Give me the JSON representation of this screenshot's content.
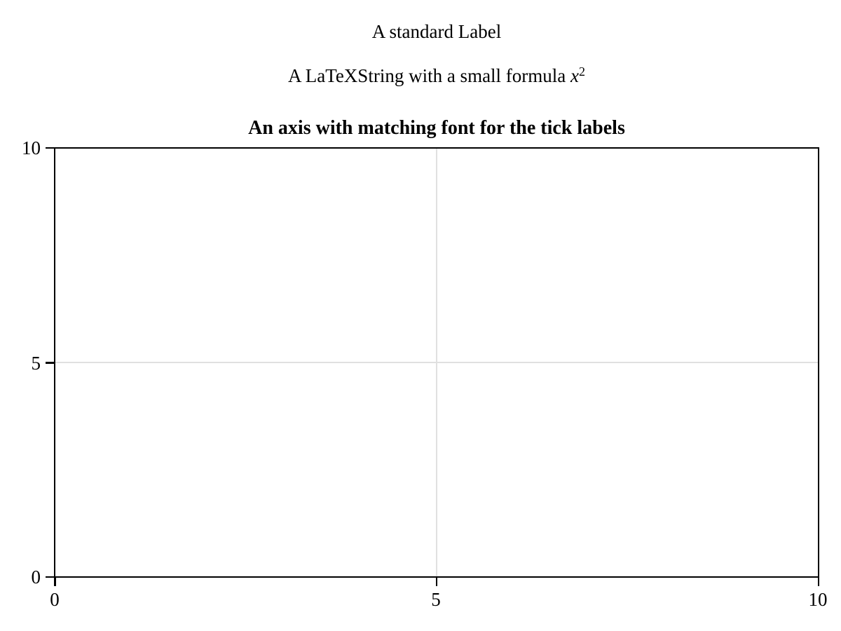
{
  "figure": {
    "background_color": "#ffffff",
    "text_color": "#000000",
    "labels": {
      "standard": "A standard Label",
      "latex_prefix": "A LaTeXString with a small formula ",
      "latex_var": "x",
      "latex_sup": "2"
    },
    "axis": {
      "title": "An axis with matching font for the tick labels",
      "spine_color": "#000000",
      "grid_color": "#e0e0e0",
      "xticklabels": [
        "0",
        "5",
        "10"
      ],
      "yticklabels": [
        "0",
        "5",
        "10"
      ]
    }
  },
  "chart_data": {
    "type": "line",
    "title": "An axis with matching font for the tick labels",
    "xlabel": "",
    "ylabel": "",
    "xlim": [
      0,
      10
    ],
    "ylim": [
      0,
      10
    ],
    "xticks": [
      0,
      5,
      10
    ],
    "yticks": [
      0,
      5,
      10
    ],
    "grid": true,
    "legend": false,
    "series": [],
    "notes": "Empty axis with no plotted data; gridlines at x=5 and y=5; box-style spines with outward ticks. Two text labels above the axis title."
  }
}
